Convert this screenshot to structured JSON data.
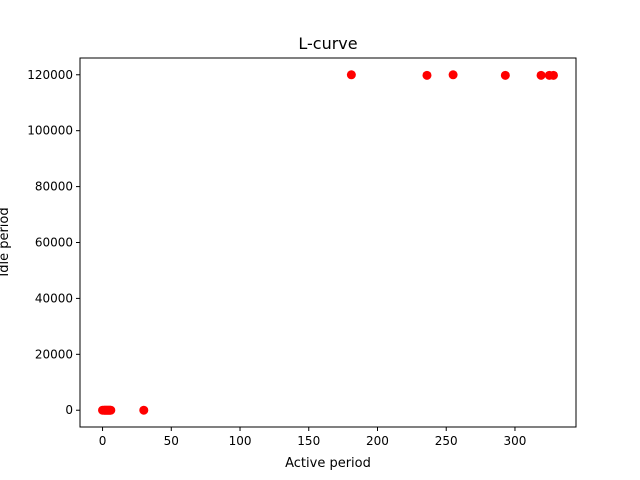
{
  "chart_data": {
    "type": "scatter",
    "title": "L-curve",
    "xlabel": "Active period",
    "ylabel": "Idle period",
    "xlim": [
      -16.4,
      344.4
    ],
    "ylim": [
      -6000,
      126000
    ],
    "xticks": [
      0,
      50,
      100,
      150,
      200,
      250,
      300
    ],
    "yticks": [
      0,
      20000,
      40000,
      60000,
      80000,
      100000,
      120000
    ],
    "grid": false,
    "marker_color": "#ff0000",
    "series": [
      {
        "points": [
          [
            0,
            0
          ],
          [
            1,
            0
          ],
          [
            1.5,
            0
          ],
          [
            2,
            0
          ],
          [
            2.5,
            0
          ],
          [
            3,
            0
          ],
          [
            3.5,
            0
          ],
          [
            4,
            0
          ],
          [
            4.5,
            0
          ],
          [
            5,
            0
          ],
          [
            5.5,
            0
          ],
          [
            6,
            0
          ],
          [
            30,
            0
          ],
          [
            181,
            120000
          ],
          [
            236,
            119800
          ],
          [
            255,
            120000
          ],
          [
            293,
            119800
          ],
          [
            319,
            119800
          ],
          [
            325,
            119800
          ],
          [
            328,
            119800
          ]
        ]
      }
    ]
  }
}
